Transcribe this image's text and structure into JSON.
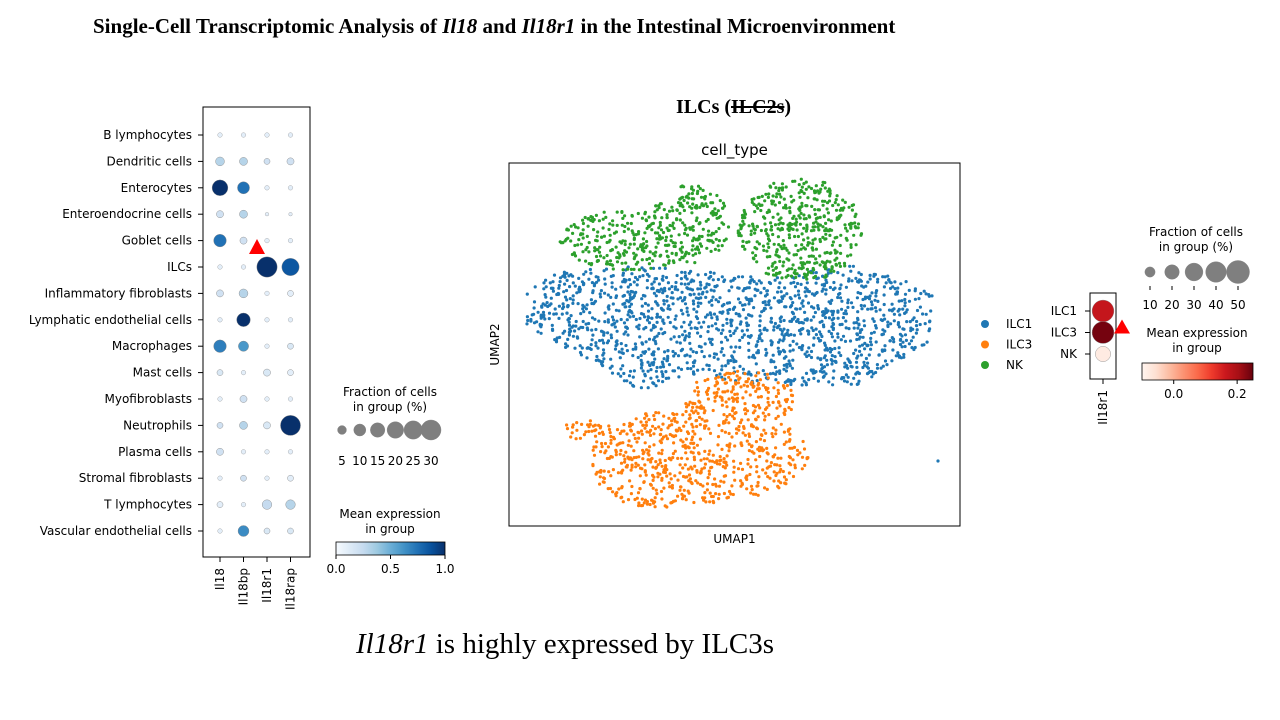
{
  "slide": {
    "title_pre": "Single-Cell Transcriptomic Analysis of ",
    "title_gene1": "Il18",
    "title_mid": " and ",
    "title_gene2": "Il18r1",
    "title_post": " in the Intestinal Microenvironment",
    "umap_heading_pre": "ILCs (",
    "umap_heading_struck": "ILC2s",
    "umap_heading_post": ")",
    "caption_gene": "Il18r1",
    "caption_rest": " is highly expressed by ILC3s"
  },
  "colors": {
    "accent_arrow": "#ff0000",
    "ilc1": "#1f77b4",
    "ilc3": "#ff7f0e",
    "nk": "#2ca02c"
  },
  "chart_data": [
    {
      "type": "dotplot",
      "genes": [
        "Il18",
        "Il18bp",
        "Il18r1",
        "Il18rap"
      ],
      "cell_types": [
        "B lymphocytes",
        "Dendritic cells",
        "Enterocytes",
        "Enteroendocrine cells",
        "Goblet cells",
        "ILCs",
        "Inflammatory fibroblasts",
        "Lymphatic endothelial cells",
        "Macrophages",
        "Mast cells",
        "Myofibroblasts",
        "Neutrophils",
        "Plasma cells",
        "Stromal fibroblasts",
        "T lymphocytes",
        "Vascular endothelial cells"
      ],
      "fraction_pct": [
        [
          1,
          1,
          1,
          1
        ],
        [
          5,
          4,
          2,
          3
        ],
        [
          18,
          10,
          1,
          1
        ],
        [
          3,
          4,
          0.5,
          0.5
        ],
        [
          11,
          3,
          1,
          1
        ],
        [
          1,
          1,
          31,
          22
        ],
        [
          3,
          5,
          1,
          2
        ],
        [
          1,
          13,
          1,
          1
        ],
        [
          11,
          7,
          1,
          2
        ],
        [
          2,
          1,
          3,
          2
        ],
        [
          1,
          3,
          1,
          1
        ],
        [
          2,
          4,
          3,
          30
        ],
        [
          3,
          1,
          1,
          1
        ],
        [
          1,
          2,
          1,
          2
        ],
        [
          2,
          1,
          6,
          6
        ],
        [
          1,
          8,
          2,
          2
        ]
      ],
      "mean_expression": [
        [
          0.1,
          0.1,
          0.1,
          0.1
        ],
        [
          0.3,
          0.3,
          0.2,
          0.2
        ],
        [
          1.0,
          0.75,
          0.1,
          0.1
        ],
        [
          0.2,
          0.3,
          0.1,
          0.1
        ],
        [
          0.75,
          0.2,
          0.1,
          0.1
        ],
        [
          0.1,
          0.1,
          1.0,
          0.85
        ],
        [
          0.2,
          0.3,
          0.1,
          0.1
        ],
        [
          0.1,
          1.0,
          0.1,
          0.1
        ],
        [
          0.7,
          0.6,
          0.1,
          0.15
        ],
        [
          0.15,
          0.1,
          0.15,
          0.1
        ],
        [
          0.1,
          0.2,
          0.1,
          0.1
        ],
        [
          0.2,
          0.3,
          0.15,
          1.0
        ],
        [
          0.2,
          0.1,
          0.1,
          0.1
        ],
        [
          0.1,
          0.2,
          0.1,
          0.1
        ],
        [
          0.1,
          0.1,
          0.25,
          0.3
        ],
        [
          0.1,
          0.65,
          0.15,
          0.15
        ]
      ],
      "size_legend": {
        "title": "Fraction of cells\nin group (%)",
        "values": [
          5,
          10,
          15,
          20,
          25,
          30
        ]
      },
      "color_legend": {
        "title": "Mean expression\nin group",
        "range": [
          0.0,
          1.0
        ],
        "ticks": [
          "0.0",
          "0.5",
          "1.0"
        ],
        "colormap": "Blues"
      },
      "annotation": {
        "shape": "triangle",
        "target_cell_type": "ILCs",
        "target_gene": "Il18r1"
      }
    },
    {
      "type": "scatter",
      "title": "cell_type",
      "xlabel": "UMAP1",
      "ylabel": "UMAP2",
      "grid": false,
      "legend_position": "right",
      "series": [
        {
          "name": "ILC1",
          "color": "#1f77b4",
          "region": "middle band"
        },
        {
          "name": "ILC3",
          "color": "#ff7f0e",
          "region": "bottom cluster"
        },
        {
          "name": "NK",
          "color": "#2ca02c",
          "region": "top cluster"
        }
      ]
    },
    {
      "type": "dotplot",
      "genes": [
        "Il18r1"
      ],
      "cell_types": [
        "ILC1",
        "ILC3",
        "NK"
      ],
      "fraction_pct": [
        [
          45
        ],
        [
          45
        ],
        [
          22
        ]
      ],
      "mean_expression": [
        [
          0.17
        ],
        [
          0.24
        ],
        [
          -0.08
        ]
      ],
      "size_legend": {
        "title": "Fraction of cells\nin group (%)",
        "values": [
          10,
          20,
          30,
          40,
          50
        ]
      },
      "color_legend": {
        "title": "Mean expression\nin group",
        "range": [
          -0.1,
          0.25
        ],
        "ticks": [
          "0.0",
          "0.2"
        ],
        "colormap": "Reds"
      },
      "annotation": {
        "shape": "triangle",
        "target_cell_type": "ILC3",
        "target_gene": "Il18r1"
      }
    }
  ]
}
